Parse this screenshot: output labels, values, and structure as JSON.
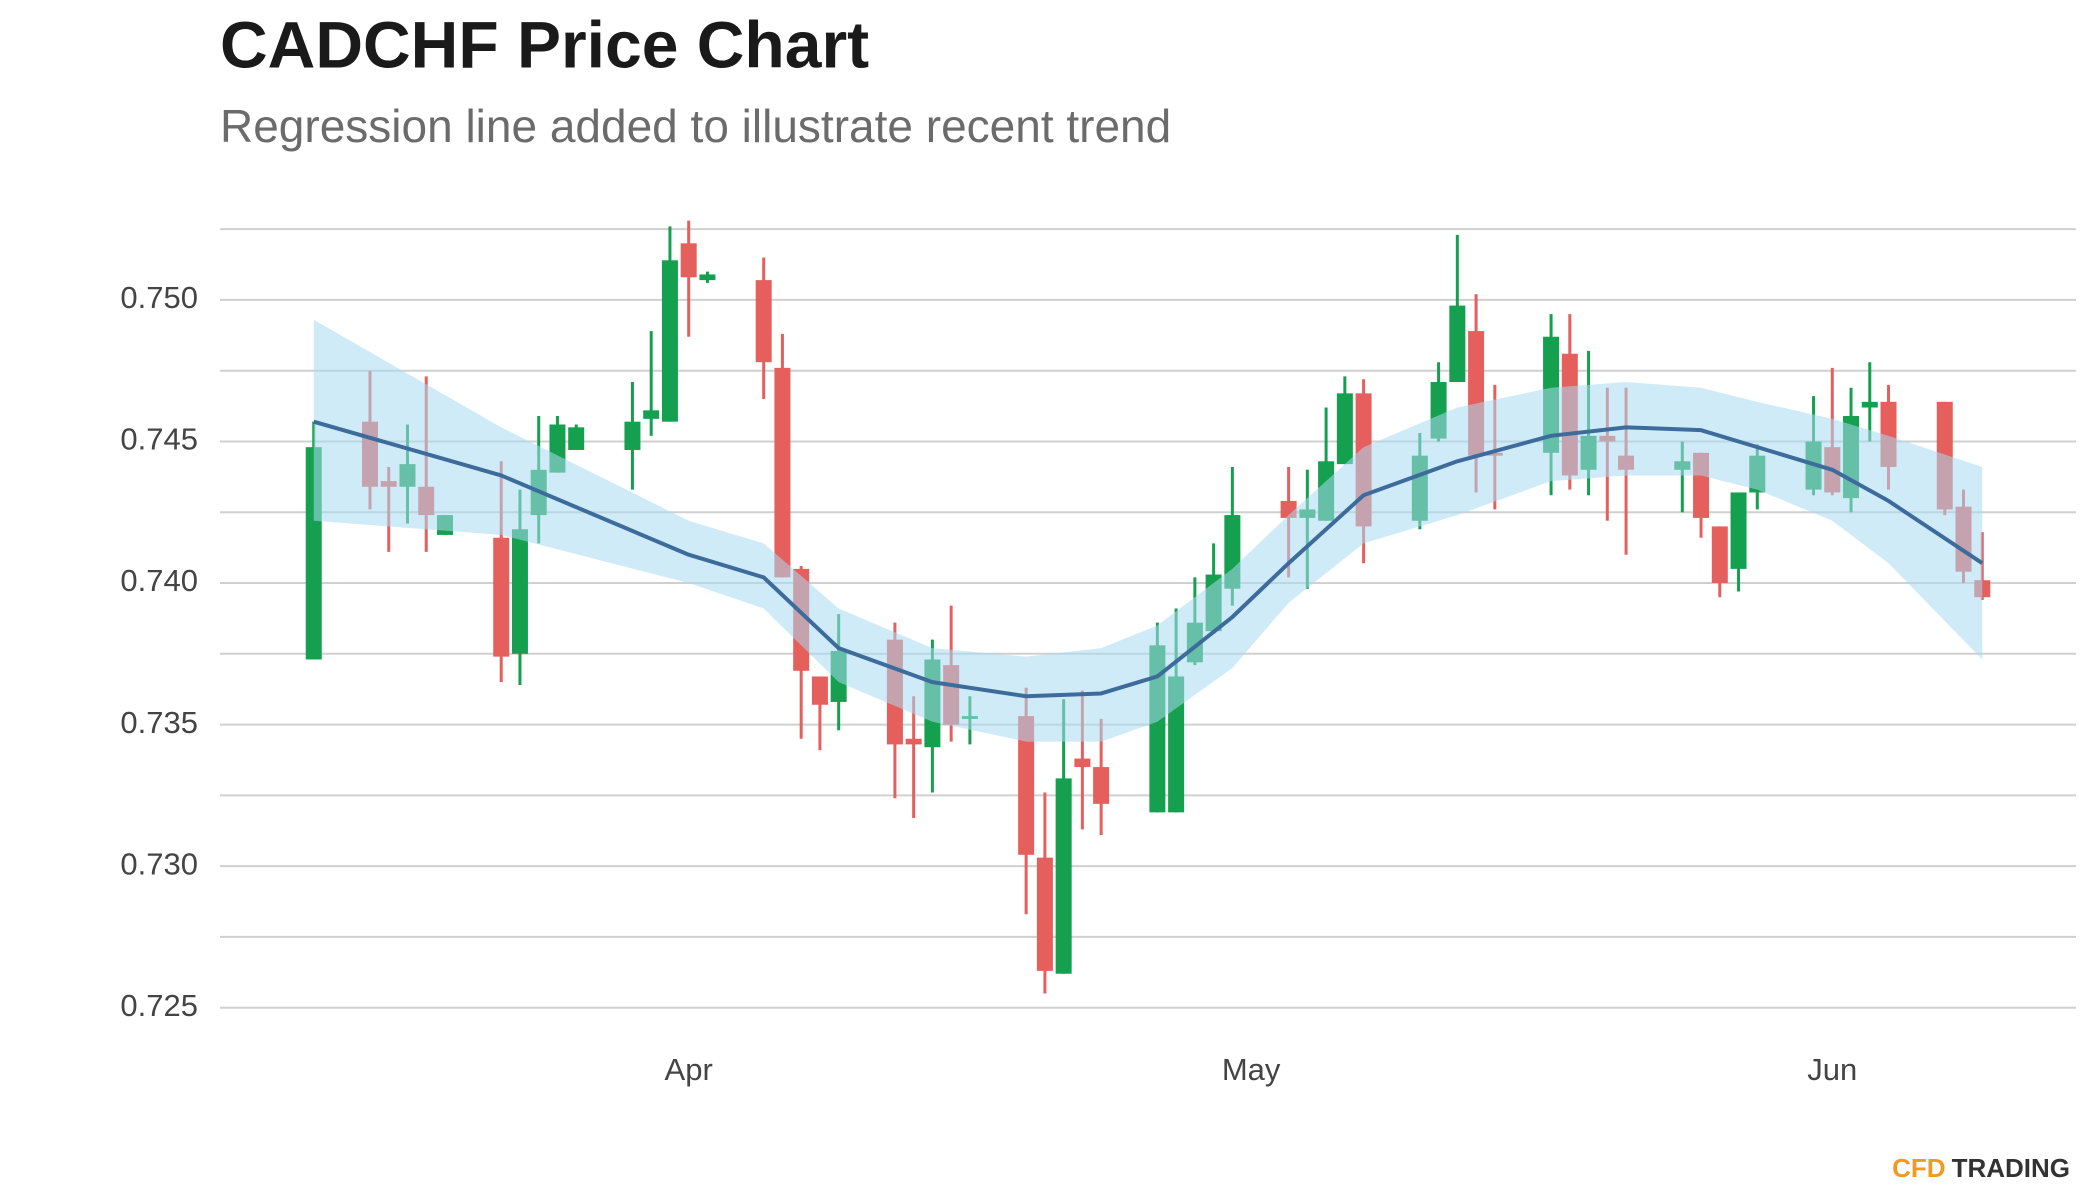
{
  "chart_data": {
    "type": "candlestick",
    "title": "CADCHF Price Chart",
    "subtitle": "Regression line added to illustrate recent trend",
    "x": [
      "03-12",
      "03-15",
      "03-16",
      "03-17",
      "03-18",
      "03-19",
      "03-22",
      "03-23",
      "03-24",
      "03-25",
      "03-26",
      "03-29",
      "03-30",
      "03-31",
      "04-01",
      "04-02",
      "04-05",
      "04-06",
      "04-07",
      "04-08",
      "04-09",
      "04-12",
      "04-13",
      "04-14",
      "04-15",
      "04-16",
      "04-19",
      "04-20",
      "04-21",
      "04-22",
      "04-23",
      "04-26",
      "04-27",
      "04-28",
      "04-29",
      "04-30",
      "05-03",
      "05-04",
      "05-05",
      "05-06",
      "05-07",
      "05-10",
      "05-11",
      "05-12",
      "05-13",
      "05-14",
      "05-17",
      "05-18",
      "05-19",
      "05-20",
      "05-21",
      "05-24",
      "05-25",
      "05-26",
      "05-27",
      "05-28",
      "05-31",
      "06-01",
      "06-02",
      "06-03",
      "06-04",
      "06-07",
      "06-08",
      "06-09"
    ],
    "open": [
      0.7373,
      0.7457,
      0.7436,
      0.7434,
      0.7434,
      0.7417,
      0.7416,
      0.7375,
      0.7424,
      0.7439,
      0.7447,
      0.7447,
      0.7458,
      0.7457,
      0.752,
      0.7507,
      0.7507,
      0.7476,
      0.7405,
      0.7367,
      0.7358,
      0.738,
      0.7345,
      0.7342,
      0.7371,
      0.7352,
      0.7353,
      0.7303,
      0.7262,
      0.7338,
      0.7335,
      0.7319,
      0.7319,
      0.7372,
      0.7383,
      0.7398,
      0.7429,
      0.7423,
      0.7422,
      0.7442,
      0.7467,
      0.7422,
      0.7451,
      0.7471,
      0.7489,
      0.7446,
      0.7446,
      0.7481,
      0.744,
      0.7452,
      0.7445,
      0.744,
      0.7446,
      0.742,
      0.7405,
      0.7432,
      0.7433,
      0.7448,
      0.743,
      0.7462,
      0.7464,
      0.7464,
      0.7427,
      0.7401
    ],
    "high": [
      0.7457,
      0.7475,
      0.7441,
      0.7456,
      0.7473,
      0.7424,
      0.7443,
      0.7433,
      0.7459,
      0.7459,
      0.7456,
      0.7471,
      0.7489,
      0.7526,
      0.7528,
      0.751,
      0.7515,
      0.7488,
      0.7406,
      0.7367,
      0.7389,
      0.7386,
      0.736,
      0.738,
      0.7392,
      0.736,
      0.7363,
      0.7326,
      0.7359,
      0.7362,
      0.7352,
      0.7386,
      0.7391,
      0.7402,
      0.7414,
      0.7441,
      0.7441,
      0.744,
      0.7462,
      0.7473,
      0.7472,
      0.7453,
      0.7478,
      0.7523,
      0.7502,
      0.747,
      0.7495,
      0.7495,
      0.7482,
      0.7469,
      0.7469,
      0.745,
      0.7446,
      0.742,
      0.7432,
      0.7449,
      0.7466,
      0.7476,
      0.7469,
      0.7478,
      0.747,
      0.7464,
      0.7433,
      0.7418
    ],
    "low": [
      0.7373,
      0.7426,
      0.7411,
      0.7421,
      0.7411,
      0.7417,
      0.7365,
      0.7364,
      0.7414,
      0.7439,
      0.7447,
      0.7433,
      0.7452,
      0.7457,
      0.7487,
      0.7506,
      0.7465,
      0.7402,
      0.7345,
      0.7341,
      0.7348,
      0.7324,
      0.7317,
      0.7326,
      0.7344,
      0.7343,
      0.7283,
      0.7255,
      0.7262,
      0.7313,
      0.7311,
      0.7319,
      0.7319,
      0.7371,
      0.7382,
      0.7392,
      0.7402,
      0.7398,
      0.7422,
      0.7442,
      0.7407,
      0.7419,
      0.745,
      0.7471,
      0.7432,
      0.7426,
      0.7431,
      0.7433,
      0.7431,
      0.7422,
      0.741,
      0.7425,
      0.7416,
      0.7395,
      0.7397,
      0.7426,
      0.7431,
      0.7431,
      0.7425,
      0.745,
      0.7433,
      0.7424,
      0.74,
      0.7394
    ],
    "close": [
      0.7448,
      0.7434,
      0.7434,
      0.7442,
      0.7424,
      0.7424,
      0.7374,
      0.7419,
      0.744,
      0.7456,
      0.7455,
      0.7457,
      0.7461,
      0.7514,
      0.7508,
      0.7509,
      0.7478,
      0.7402,
      0.7369,
      0.7357,
      0.7376,
      0.7343,
      0.7343,
      0.7373,
      0.735,
      0.7353,
      0.7304,
      0.7263,
      0.7331,
      0.7335,
      0.7322,
      0.7378,
      0.7367,
      0.7386,
      0.7403,
      0.7424,
      0.7423,
      0.7426,
      0.7443,
      0.7467,
      0.742,
      0.7445,
      0.7471,
      0.7498,
      0.7445,
      0.7445,
      0.7487,
      0.7438,
      0.7452,
      0.745,
      0.744,
      0.7443,
      0.7423,
      0.74,
      0.7432,
      0.7445,
      0.745,
      0.7432,
      0.7459,
      0.7464,
      0.7441,
      0.7426,
      0.7404,
      0.7395
    ],
    "up_color": "#14a04f",
    "down_color": "#e5605d",
    "regression": {
      "x": [
        "03-12",
        "03-22",
        "04-01",
        "04-05",
        "04-09",
        "04-14",
        "04-19",
        "04-23",
        "04-26",
        "04-30",
        "05-03",
        "05-07",
        "05-12",
        "05-17",
        "05-21",
        "05-25",
        "05-28",
        "06-01",
        "06-04",
        "06-09"
      ],
      "values": [
        0.7457,
        0.7438,
        0.741,
        0.7402,
        0.7377,
        0.7365,
        0.736,
        0.7361,
        0.7367,
        0.7388,
        0.7407,
        0.7431,
        0.7443,
        0.7452,
        0.7455,
        0.7454,
        0.7448,
        0.744,
        0.7429,
        0.7407
      ],
      "upper": [
        0.7493,
        0.7455,
        0.7422,
        0.7414,
        0.7391,
        0.7377,
        0.7374,
        0.7377,
        0.7385,
        0.7405,
        0.7424,
        0.7448,
        0.7462,
        0.7469,
        0.7471,
        0.7469,
        0.7464,
        0.7458,
        0.7452,
        0.7441
      ],
      "lower": [
        0.7422,
        0.7417,
        0.74,
        0.7391,
        0.7365,
        0.7351,
        0.7344,
        0.7344,
        0.7351,
        0.737,
        0.7393,
        0.7414,
        0.7424,
        0.7436,
        0.7438,
        0.7438,
        0.7433,
        0.7422,
        0.7407,
        0.7373
      ],
      "color": "#3d6c9c",
      "band_color": "#a9daf2"
    },
    "xlim": [
      "03-07",
      "06-14"
    ],
    "xticks": [
      {
        "value": "04-01",
        "label": "Apr"
      },
      {
        "value": "05-01",
        "label": "May"
      },
      {
        "value": "06-01",
        "label": "Jun"
      }
    ],
    "ylim": [
      0.724,
      0.753
    ],
    "yticks": [
      {
        "value": 0.725,
        "label": "0.725"
      },
      {
        "value": 0.73,
        "label": "0.730"
      },
      {
        "value": 0.735,
        "label": "0.735"
      },
      {
        "value": 0.74,
        "label": "0.740"
      },
      {
        "value": 0.745,
        "label": "0.745"
      },
      {
        "value": 0.75,
        "label": "0.750"
      }
    ],
    "yminor": [
      0.7275,
      0.7325,
      0.7375,
      0.7425,
      0.7475,
      0.7525
    ],
    "grid": true,
    "logo": [
      "CFD",
      "TRADING"
    ]
  }
}
